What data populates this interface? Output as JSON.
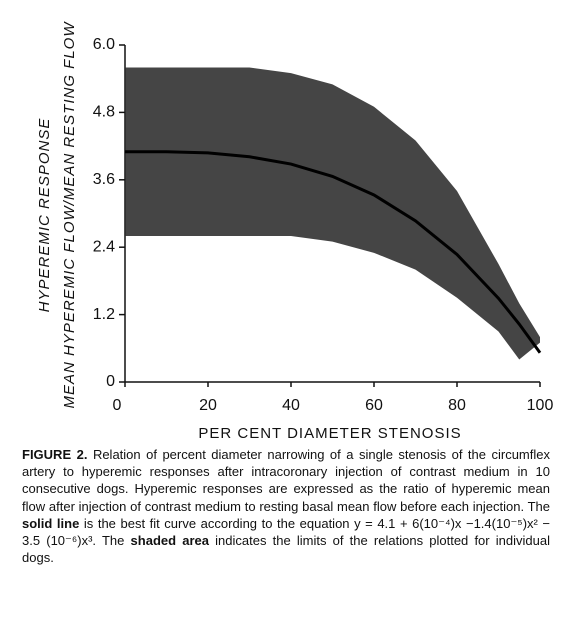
{
  "chart_data": {
    "type": "band",
    "x_label": "PER CENT DIAMETER STENOSIS",
    "y_labels": [
      "HYPEREMIC RESPONSE",
      "MEAN HYPEREMIC FLOW/MEAN RESTING FLOW"
    ],
    "x": [
      0,
      10,
      20,
      30,
      40,
      50,
      60,
      70,
      80,
      90,
      95,
      100
    ],
    "band": {
      "color": "#2b2b2b",
      "upper": [
        5.6,
        5.6,
        5.6,
        5.6,
        5.5,
        5.3,
        4.9,
        4.3,
        3.4,
        2.1,
        1.4,
        0.8
      ],
      "lower": [
        2.6,
        2.6,
        2.6,
        2.6,
        2.6,
        2.5,
        2.3,
        2.0,
        1.5,
        0.9,
        0.4,
        0.7
      ]
    },
    "line": {
      "color": "#000000",
      "values": [
        4.1,
        4.1,
        4.08,
        4.01,
        3.88,
        3.66,
        3.33,
        2.87,
        2.27,
        1.49,
        1.03,
        0.52
      ]
    },
    "xlim": [
      0,
      100
    ],
    "ylim": [
      0,
      6
    ],
    "xticks": [
      0,
      20,
      40,
      60,
      80,
      100
    ],
    "yticks": [
      0,
      1.2,
      2.4,
      3.6,
      4.8,
      {
        "value": 6,
        "label": "6.0"
      }
    ]
  },
  "caption": {
    "label": "FIGURE 2.",
    "parts": [
      {
        "text": " Relation of percent diameter narrowing of a single stenosis of the circumflex artery to hyperemic responses after intracoronary injection of contrast medium in 10 consecutive dogs. Hyperemic responses are expressed as the ratio of hyperemic mean flow after injection of contrast medium to resting basal mean flow before each injection. The "
      },
      {
        "text": "solid line",
        "bold": true
      },
      {
        "text": " is the best fit curve according to the equation y = 4.1 + 6(10⁻⁴)x −1.4(10⁻⁵)x² − 3.5 (10⁻⁶)x³. The "
      },
      {
        "text": "shaded area",
        "bold": true
      },
      {
        "text": " indicates the limits of the relations plotted for individual dogs."
      }
    ]
  }
}
